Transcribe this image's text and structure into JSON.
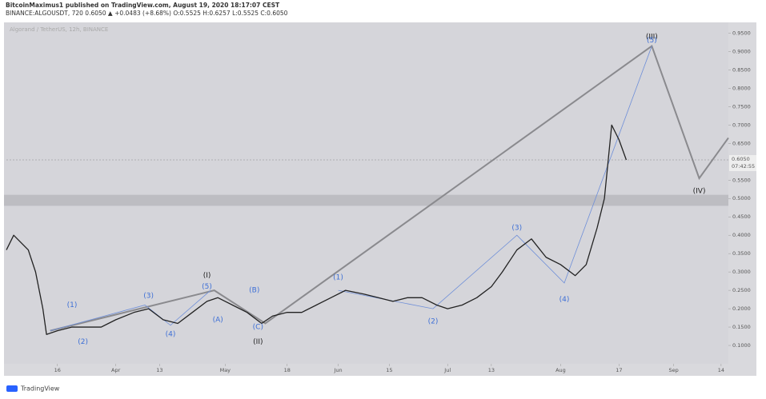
{
  "header": {
    "author_line": "BitcoinMaximus1 published on TradingView.com, August 19, 2020 18:17:07 CEST",
    "symbol_line": "BINANCE:ALGOUSDT, 720  0.6050 ▲ +0.0483 (+8.68%) O:0.5525 H:0.6257 L:0.5525 C:0.6050"
  },
  "footer": {
    "brand": "TradingView"
  },
  "chart_data": {
    "type": "line",
    "title": "Algorand / TetherUS, 12h, BINANCE",
    "color": "#222222",
    "x": [
      "2020-03-02",
      "2020-03-04",
      "2020-03-08",
      "2020-03-10",
      "2020-03-12",
      "2020-03-13",
      "2020-03-16",
      "2020-03-20",
      "2020-03-24",
      "2020-03-28",
      "2020-04-01",
      "2020-04-06",
      "2020-04-10",
      "2020-04-14",
      "2020-04-18",
      "2020-04-22",
      "2020-04-26",
      "2020-04-29",
      "2020-05-03",
      "2020-05-07",
      "2020-05-11",
      "2020-05-14",
      "2020-05-18",
      "2020-05-22",
      "2020-05-26",
      "2020-05-30",
      "2020-06-03",
      "2020-06-08",
      "2020-06-12",
      "2020-06-16",
      "2020-06-20",
      "2020-06-24",
      "2020-06-28",
      "2020-07-01",
      "2020-07-05",
      "2020-07-09",
      "2020-07-13",
      "2020-07-16",
      "2020-07-20",
      "2020-07-24",
      "2020-07-28",
      "2020-08-01",
      "2020-08-05",
      "2020-08-08",
      "2020-08-11",
      "2020-08-13",
      "2020-08-15",
      "2020-08-17",
      "2020-08-19"
    ],
    "values": [
      0.36,
      0.4,
      0.36,
      0.3,
      0.2,
      0.13,
      0.14,
      0.15,
      0.15,
      0.15,
      0.17,
      0.19,
      0.2,
      0.17,
      0.16,
      0.19,
      0.22,
      0.23,
      0.21,
      0.19,
      0.16,
      0.18,
      0.19,
      0.19,
      0.21,
      0.23,
      0.25,
      0.24,
      0.23,
      0.22,
      0.23,
      0.23,
      0.21,
      0.2,
      0.21,
      0.23,
      0.26,
      0.3,
      0.36,
      0.39,
      0.34,
      0.32,
      0.29,
      0.32,
      0.42,
      0.5,
      0.7,
      0.66,
      0.605
    ],
    "xlim": [
      "2020-03-02",
      "2020-09-16"
    ],
    "xticks": [
      {
        "value": "2020-03-16",
        "label": "16"
      },
      {
        "value": "2020-04-01",
        "label": "Apr"
      },
      {
        "value": "2020-04-13",
        "label": "13"
      },
      {
        "value": "2020-05-01",
        "label": "May"
      },
      {
        "value": "2020-05-18",
        "label": "18"
      },
      {
        "value": "2020-06-01",
        "label": "Jun"
      },
      {
        "value": "2020-06-15",
        "label": "15"
      },
      {
        "value": "2020-07-01",
        "label": "Jul"
      },
      {
        "value": "2020-07-13",
        "label": "13"
      },
      {
        "value": "2020-08-01",
        "label": "Aug"
      },
      {
        "value": "2020-08-17",
        "label": "17"
      },
      {
        "value": "2020-09-01",
        "label": "Sep"
      },
      {
        "value": "2020-09-14",
        "label": "14"
      }
    ],
    "ylim": [
      0.05,
      0.975
    ],
    "yticks": [
      {
        "value": 0.95,
        "label": "0.9500"
      },
      {
        "value": 0.9,
        "label": "0.9000"
      },
      {
        "value": 0.85,
        "label": "0.8500"
      },
      {
        "value": 0.8,
        "label": "0.8000"
      },
      {
        "value": 0.75,
        "label": "0.7500"
      },
      {
        "value": 0.7,
        "label": "0.7000"
      },
      {
        "value": 0.65,
        "label": "0.6500"
      },
      {
        "value": 0.55,
        "label": "0.5500"
      },
      {
        "value": 0.5,
        "label": "0.5000"
      },
      {
        "value": 0.45,
        "label": "0.4500"
      },
      {
        "value": 0.4,
        "label": "0.4000"
      },
      {
        "value": 0.35,
        "label": "0.3500"
      },
      {
        "value": 0.3,
        "label": "0.3000"
      },
      {
        "value": 0.25,
        "label": "0.2500"
      },
      {
        "value": 0.2,
        "label": "0.2000"
      },
      {
        "value": 0.15,
        "label": "0.1500"
      },
      {
        "value": 0.1,
        "label": "0.1000"
      }
    ],
    "last_price": {
      "value": 0.605,
      "label": "0.6050"
    },
    "countdown": "07:42:55",
    "zone": [
      0.48,
      0.51
    ],
    "wave_lines": [
      {
        "color": "#8a8a8e",
        "x": [
          "2020-03-14",
          "2020-04-28",
          "2020-05-12",
          "2020-08-26",
          "2020-09-08",
          "2020-09-16"
        ],
        "y": [
          0.14,
          0.25,
          0.16,
          0.915,
          0.555,
          0.665
        ]
      },
      {
        "color": "#6f8fd8",
        "x": [
          "2020-03-14",
          "2020-04-09",
          "2020-04-16",
          "2020-04-27"
        ],
        "y": [
          0.14,
          0.21,
          0.155,
          0.25
        ]
      },
      {
        "color": "#6f8fd8",
        "x": [
          "2020-06-01",
          "2020-06-27",
          "2020-07-20",
          "2020-08-02",
          "2020-08-26"
        ],
        "y": [
          0.25,
          0.2,
          0.4,
          0.27,
          0.915
        ]
      }
    ],
    "annotations": [
      {
        "label": "(I)",
        "x": "2020-04-26",
        "y": 0.29,
        "color": "#222222"
      },
      {
        "label": "(II)",
        "x": "2020-05-10",
        "y": 0.11,
        "color": "#222222"
      },
      {
        "label": "(III)",
        "x": "2020-08-26",
        "y": 0.94,
        "color": "#222222"
      },
      {
        "label": "(IV)",
        "x": "2020-09-08",
        "y": 0.52,
        "color": "#222222"
      },
      {
        "label": "(1)",
        "x": "2020-03-20",
        "y": 0.21,
        "color": "#3d6fd6"
      },
      {
        "label": "(2)",
        "x": "2020-03-23",
        "y": 0.11,
        "color": "#3d6fd6"
      },
      {
        "label": "(3)",
        "x": "2020-04-10",
        "y": 0.235,
        "color": "#3d6fd6"
      },
      {
        "label": "(4)",
        "x": "2020-04-16",
        "y": 0.13,
        "color": "#3d6fd6"
      },
      {
        "label": "(5)",
        "x": "2020-04-26",
        "y": 0.26,
        "color": "#3d6fd6"
      },
      {
        "label": "(A)",
        "x": "2020-04-29",
        "y": 0.17,
        "color": "#3d6fd6"
      },
      {
        "label": "(B)",
        "x": "2020-05-09",
        "y": 0.25,
        "color": "#3d6fd6"
      },
      {
        "label": "(C)",
        "x": "2020-05-10",
        "y": 0.15,
        "color": "#3d6fd6"
      },
      {
        "label": "(1)",
        "x": "2020-06-01",
        "y": 0.285,
        "color": "#3d6fd6"
      },
      {
        "label": "(2)",
        "x": "2020-06-27",
        "y": 0.165,
        "color": "#3d6fd6"
      },
      {
        "label": "(3)",
        "x": "2020-07-20",
        "y": 0.42,
        "color": "#3d6fd6"
      },
      {
        "label": "(4)",
        "x": "2020-08-02",
        "y": 0.225,
        "color": "#3d6fd6"
      },
      {
        "label": "(5)",
        "x": "2020-08-26",
        "y": 0.93,
        "color": "#3d6fd6"
      }
    ]
  }
}
